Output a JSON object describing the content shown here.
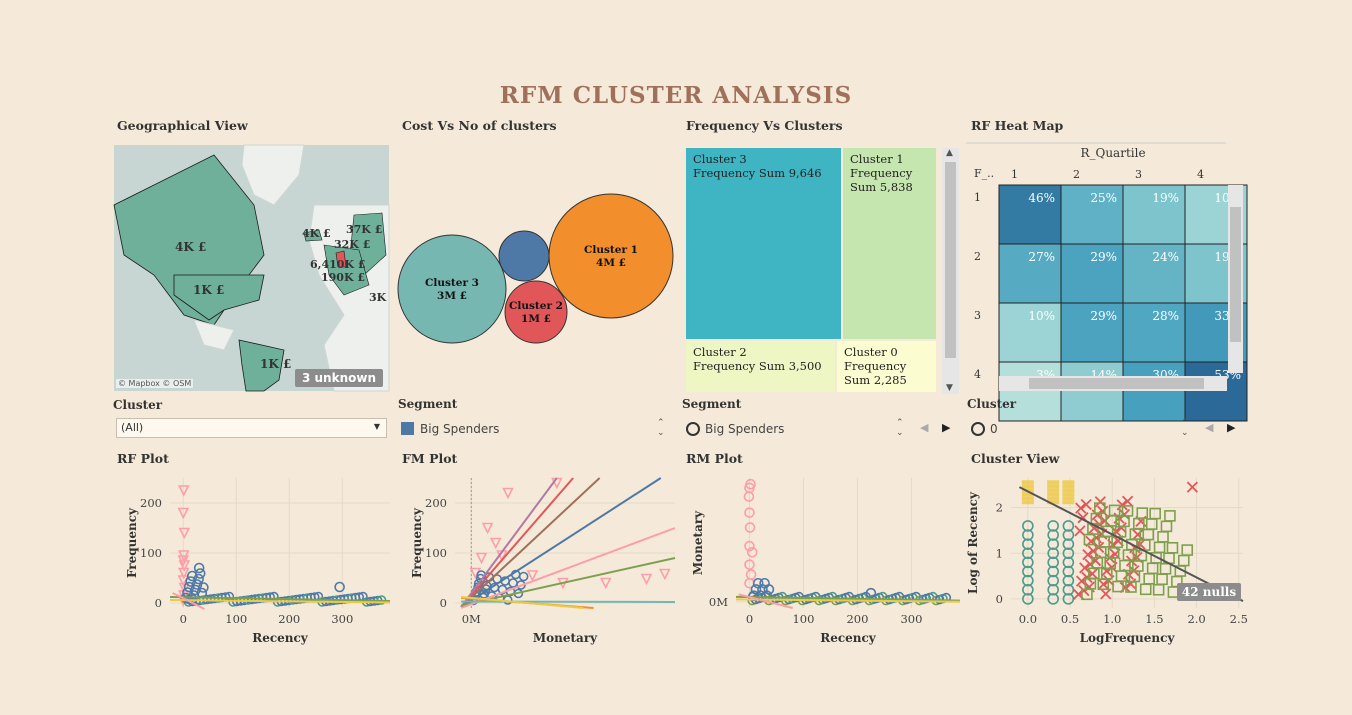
{
  "title": "RFM CLUSTER ANALYSIS",
  "panels": {
    "geo": "Geographical View",
    "bubble": "Cost Vs No of clusters",
    "treemap": "Frequency Vs Clusters",
    "heatmap": "RF Heat Map",
    "rf": "RF Plot",
    "fm": "FM Plot",
    "rm": "RM Plot",
    "cluster_view": "Cluster View"
  },
  "filters": {
    "cluster_label": "Cluster",
    "cluster_value": "(All)",
    "segment1_label": "Segment",
    "segment1_value": "Big Spenders",
    "segment2_label": "Segment",
    "segment2_value": "Big Spenders",
    "cluster2_label": "Cluster",
    "cluster2_value": "0"
  },
  "map": {
    "attribution": "© Mapbox © OSM",
    "unknown_badge": "3 unknown",
    "labels": [
      {
        "text": "4K £",
        "region": "canada"
      },
      {
        "text": "1K £",
        "region": "usa"
      },
      {
        "text": "1K £",
        "region": "brazil"
      },
      {
        "text": "4K £",
        "region": "iceland"
      },
      {
        "text": "37K £",
        "region": "scandinavia"
      },
      {
        "text": "32K £",
        "region": "north-europe"
      },
      {
        "text": "6,410K £",
        "region": "uk"
      },
      {
        "text": "190K £",
        "region": "west-europe"
      },
      {
        "text": "3K",
        "region": "east-europe"
      }
    ]
  },
  "colors": {
    "cluster0": "#7ea04e",
    "cluster1": "#f28e2b",
    "cluster2": "#e15759",
    "cluster3": "#76b7b2",
    "teal": "#4e9a8c",
    "blue": "#4e79a7",
    "pink": "#ff9da7",
    "yellow": "#edc948",
    "accent": "#a0705a"
  },
  "chart_data": [
    {
      "type": "bubble",
      "name": "Cost Vs No of clusters",
      "bubbles": [
        {
          "label": "Cluster 1",
          "value_label": "4M £",
          "color": "#f28e2b"
        },
        {
          "label": "Cluster 3",
          "value_label": "3M £",
          "color": "#76b7b2"
        },
        {
          "label": "Cluster 2",
          "value_label": "1M £",
          "color": "#e15759"
        },
        {
          "label": "",
          "value_label": "",
          "color": "#4e79a7"
        }
      ]
    },
    {
      "type": "treemap",
      "name": "Frequency Vs Clusters",
      "measure": "Frequency Sum",
      "items": [
        {
          "label": "Cluster 3",
          "line1": "Frequency Sum 9,646",
          "line2": "",
          "value": 9646,
          "color": "#3fb5c4"
        },
        {
          "label": "Cluster 1",
          "line1": "Frequency",
          "line2": "Sum 5,838",
          "value": 5838,
          "color": "#c6e6b0"
        },
        {
          "label": "Cluster 2",
          "line1": "Frequency Sum 3,500",
          "line2": "",
          "value": 3500,
          "color": "#eef6c4"
        },
        {
          "label": "Cluster 0",
          "line1": "Frequency",
          "line2": "Sum 2,285",
          "value": 2285,
          "color": "#fbfcd0"
        }
      ]
    },
    {
      "type": "heatmap",
      "name": "RF Heat Map",
      "col_header": "R_Quartile",
      "row_header": "F_..",
      "cols": [
        "1",
        "2",
        "3",
        "4"
      ],
      "rows": [
        "1",
        "2",
        "3",
        "4"
      ],
      "values": [
        [
          "46%",
          "25%",
          "19%",
          "10%"
        ],
        [
          "27%",
          "29%",
          "24%",
          "19%"
        ],
        [
          "10%",
          "29%",
          "28%",
          "33%"
        ],
        [
          "3%",
          "14%",
          "30%",
          "53%"
        ]
      ],
      "numeric": [
        [
          46,
          25,
          19,
          10
        ],
        [
          27,
          29,
          24,
          19
        ],
        [
          10,
          29,
          28,
          33
        ],
        [
          3,
          14,
          30,
          53
        ]
      ]
    },
    {
      "type": "scatter",
      "name": "RF Plot",
      "xlabel": "Recency",
      "ylabel": "Frequency",
      "xticks": [
        "0",
        "100",
        "200",
        "300"
      ],
      "yticks": [
        "0",
        "100",
        "200"
      ],
      "xlim": [
        -25,
        390
      ],
      "ylim": [
        -10,
        250
      ]
    },
    {
      "type": "scatter",
      "name": "FM Plot",
      "xlabel": "Monetary",
      "ylabel": "Frequency",
      "xticks": [
        "0M"
      ],
      "yticks": [
        "0",
        "100",
        "200"
      ],
      "ylim": [
        -10,
        250
      ]
    },
    {
      "type": "scatter",
      "name": "RM Plot",
      "xlabel": "Recency",
      "ylabel": "Monetary",
      "xticks": [
        "0",
        "100",
        "200",
        "300"
      ],
      "yticks": [
        "0M"
      ],
      "xlim": [
        -25,
        390
      ]
    },
    {
      "type": "scatter",
      "name": "Cluster View",
      "xlabel": "LogFrequency",
      "ylabel": "Log of Recency",
      "xticks": [
        "0.0",
        "0.5",
        "1.0",
        "1.5",
        "2.0",
        "2.5"
      ],
      "yticks": [
        "0",
        "1",
        "2"
      ],
      "xlim": [
        -0.2,
        2.55
      ],
      "ylim": [
        -0.2,
        2.65
      ],
      "nulls_badge": "42 nulls"
    }
  ]
}
